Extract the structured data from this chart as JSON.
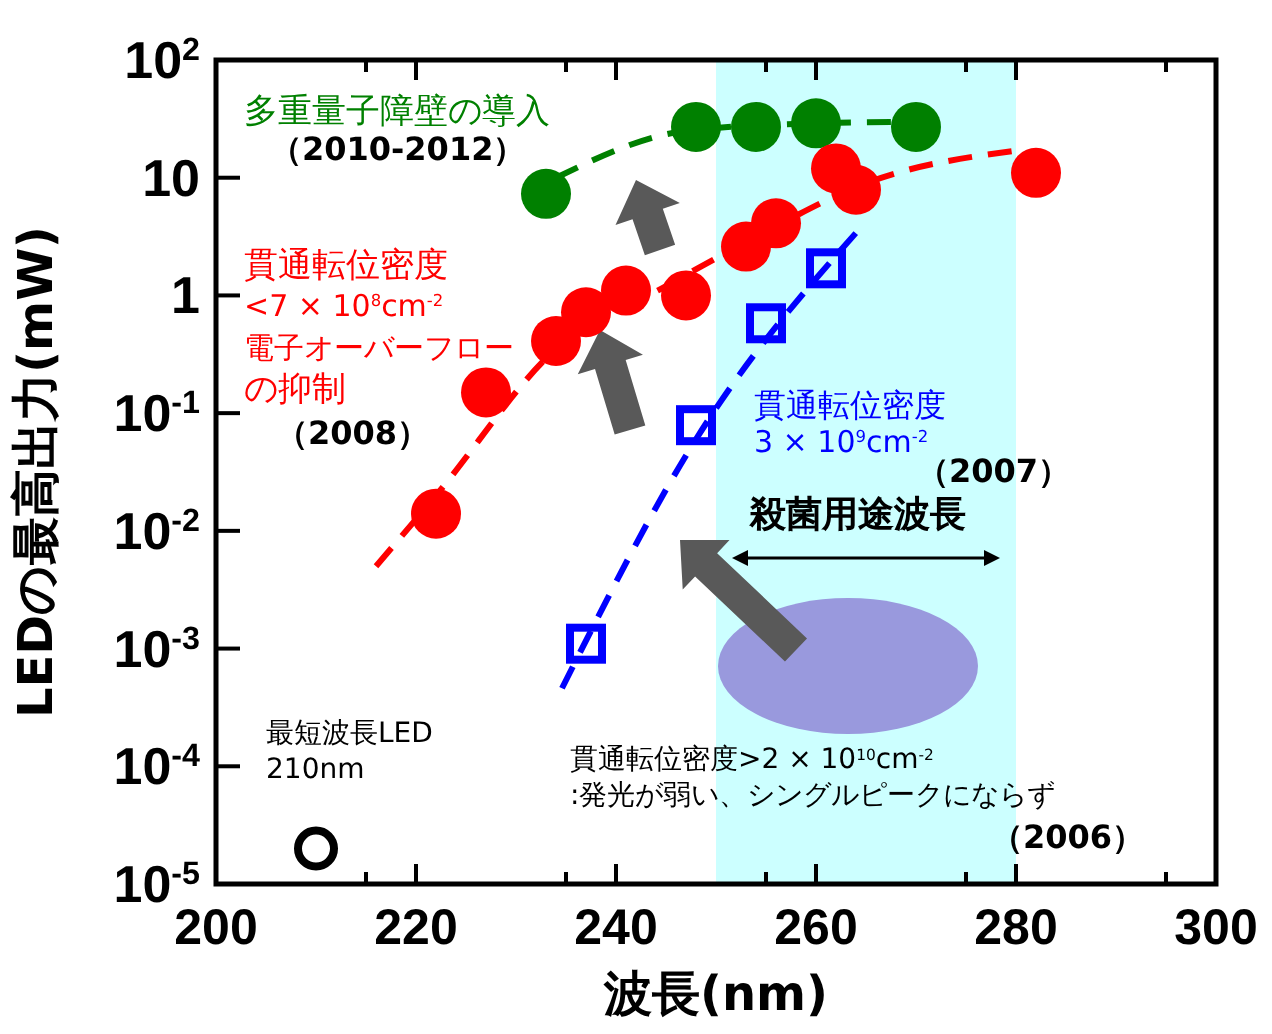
{
  "chart_data": {
    "type": "scatter",
    "xlabel": "波長(nm)",
    "ylabel": "LEDの最高出力(mW)",
    "xlim": [
      200,
      300
    ],
    "xticks": [
      200,
      220,
      240,
      260,
      280,
      300
    ],
    "ylim": [
      1e-05,
      100
    ],
    "log": "y",
    "yticks": [
      {
        "value": 1e-05,
        "label": "10$^{-5}$"
      },
      {
        "value": 0.0001,
        "label": "10$^{-4}$"
      },
      {
        "value": 0.001,
        "label": "10$^{-3}$"
      },
      {
        "value": 0.01,
        "label": "10$^{-2}$"
      },
      {
        "value": 0.1,
        "label": "10$^{-1}$"
      },
      {
        "value": 1,
        "label": "1"
      },
      {
        "value": 10,
        "label": "10"
      },
      {
        "value": 100,
        "label": "10$^{2}$"
      }
    ],
    "grid": false,
    "bands": [
      {
        "axis": "x",
        "from": 250,
        "to": 280,
        "color": "#ccffff"
      }
    ],
    "series": [
      {
        "type": "line",
        "line_style": "dashed",
        "color": "#ff0000",
        "x": [
          216,
          222,
          234,
          245,
          255,
          265,
          280
        ],
        "values": [
          0.005,
          0.02,
          0.35,
          1.2,
          3.5,
          9,
          17
        ]
      },
      {
        "type": "line",
        "line_style": "dashed",
        "color": "#008000",
        "x": [
          234,
          247,
          260,
          272
        ],
        "values": [
          10,
          25,
          29,
          30
        ]
      },
      {
        "type": "line",
        "line_style": "dashed",
        "color": "#0000ff",
        "x": [
          234.6,
          248,
          264
        ],
        "values": [
          0.00046,
          0.06,
          3.4
        ]
      },
      {
        "marker": "circle",
        "color": "#008000",
        "x": [
          233,
          248,
          254,
          260,
          270
        ],
        "values": [
          7.3,
          27,
          27,
          29,
          27
        ]
      },
      {
        "marker": "circle",
        "color": "#ff0000",
        "x": [
          222,
          227,
          234,
          237,
          241,
          247,
          253,
          256,
          262,
          264,
          282
        ],
        "values": [
          0.014,
          0.15,
          0.41,
          0.72,
          1.1,
          1.0,
          2.6,
          4.1,
          12,
          7.9,
          11
        ]
      },
      {
        "marker": "square",
        "color": "#0000ff",
        "x": [
          237,
          248,
          255,
          261
        ],
        "values": [
          0.0011,
          0.079,
          0.58,
          1.7
        ]
      },
      {
        "marker": "circle",
        "color": "#000000",
        "x": [
          210
        ],
        "values": [
          2e-05
        ]
      }
    ],
    "annotations": [
      "多重量子障壁の導入",
      "（2010-2012）",
      "貫通転位密度",
      "<7 × 10$^{8}$cm$^{-2}$",
      "電子オーバーフロー",
      "の抑制",
      "（2008）",
      "貫通転位密度",
      "3 × 10$^{9}$cm$^{-2}$",
      "（2007）",
      "殺菌用途波長",
      "最短波長LED",
      "210nm",
      "貫通転位密度>2 × 10$^{10}$cm$^{-2}$",
      ":発光が弱い、シングルピークにならず",
      "（2006）"
    ]
  }
}
